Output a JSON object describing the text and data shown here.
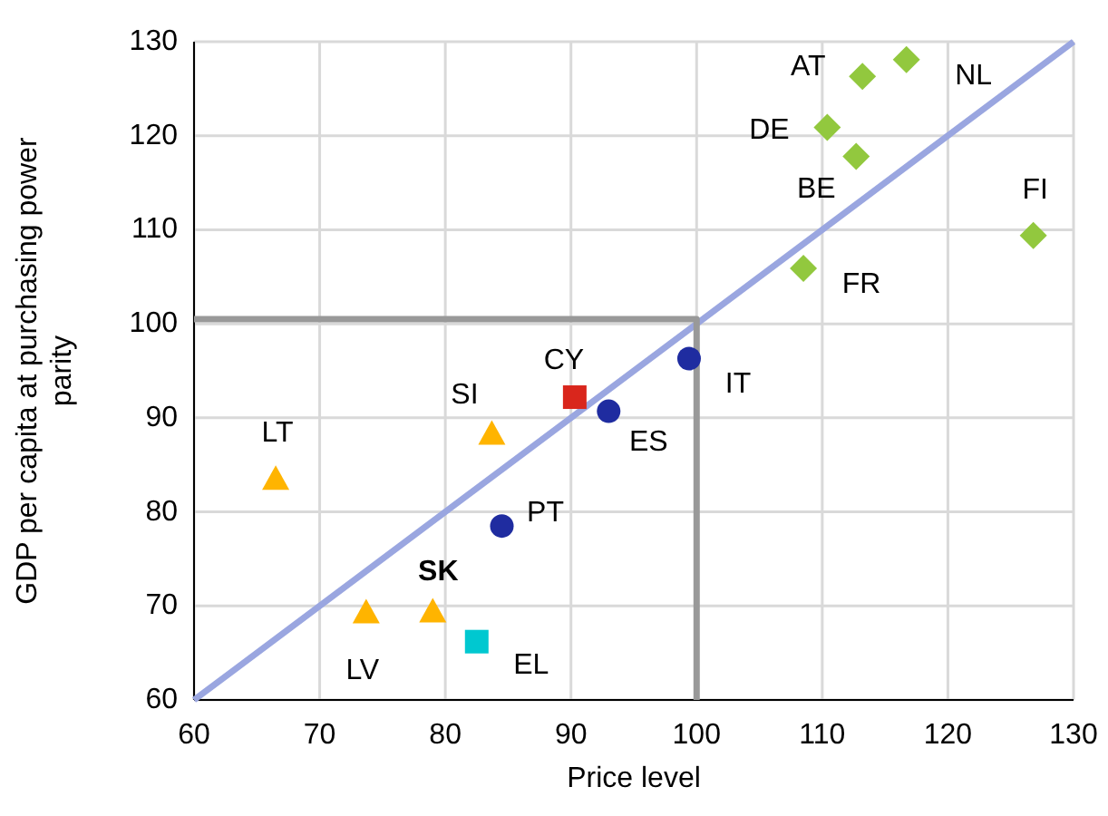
{
  "chart_data": {
    "type": "scatter",
    "xlabel": "Price level",
    "ylabel": "GDP per capita at purchasing power parity",
    "xlim": [
      60,
      130
    ],
    "xticks": [
      60,
      70,
      80,
      90,
      100,
      110,
      120,
      130
    ],
    "ylim": [
      60,
      130
    ],
    "yticks": [
      60,
      70,
      80,
      90,
      100,
      110,
      120,
      130
    ],
    "grid": true,
    "series": [
      {
        "type": "line",
        "color": "#9aa6e0",
        "x": [
          60,
          130
        ],
        "values": [
          60,
          130
        ],
        "marker": "none"
      },
      {
        "type": "line",
        "color": "#999999",
        "x": [
          60,
          100,
          100
        ],
        "values": [
          100.5,
          100.5,
          60
        ],
        "marker": "none"
      },
      {
        "color": "#92c83e",
        "marker": "diamond",
        "x": [
          113.2,
          116.7,
          110.4,
          112.7,
          126.8,
          108.5
        ],
        "values": [
          126.3,
          128.1,
          120.9,
          117.8,
          109.4,
          105.9
        ]
      },
      {
        "color": "#1f2ca0",
        "marker": "circle",
        "x": [
          99.4,
          93.0,
          84.5
        ],
        "values": [
          96.3,
          90.7,
          78.5
        ]
      },
      {
        "color": "#d9261c",
        "marker": "square",
        "x": [
          90.3
        ],
        "values": [
          92.2
        ]
      },
      {
        "color": "#ffb400",
        "marker": "triangle",
        "x": [
          83.7,
          66.5,
          79.0,
          73.7
        ],
        "values": [
          88.3,
          83.5,
          69.4,
          69.3
        ]
      },
      {
        "color": "#00c8d0",
        "marker": "square",
        "x": [
          82.5
        ],
        "values": [
          66.2
        ]
      }
    ],
    "annotations": [
      {
        "text": "AT",
        "x": 113.2,
        "y": 126.3
      },
      {
        "text": "NL",
        "x": 116.7,
        "y": 128.1
      },
      {
        "text": "DE",
        "x": 110.4,
        "y": 120.9
      },
      {
        "text": "BE",
        "x": 112.7,
        "y": 117.8
      },
      {
        "text": "FI",
        "x": 126.8,
        "y": 109.4
      },
      {
        "text": "FR",
        "x": 108.5,
        "y": 105.9
      },
      {
        "text": "IT",
        "x": 99.4,
        "y": 96.3
      },
      {
        "text": "CY",
        "x": 90.3,
        "y": 92.2
      },
      {
        "text": "ES",
        "x": 93.0,
        "y": 90.7
      },
      {
        "text": "SI",
        "x": 83.7,
        "y": 88.3
      },
      {
        "text": "LT",
        "x": 66.5,
        "y": 83.5
      },
      {
        "text": "PT",
        "x": 84.5,
        "y": 78.5
      },
      {
        "text": "SK",
        "x": 79.0,
        "y": 69.4
      },
      {
        "text": "LV",
        "x": 73.7,
        "y": 69.3
      },
      {
        "text": "EL",
        "x": 82.5,
        "y": 66.2
      }
    ]
  }
}
